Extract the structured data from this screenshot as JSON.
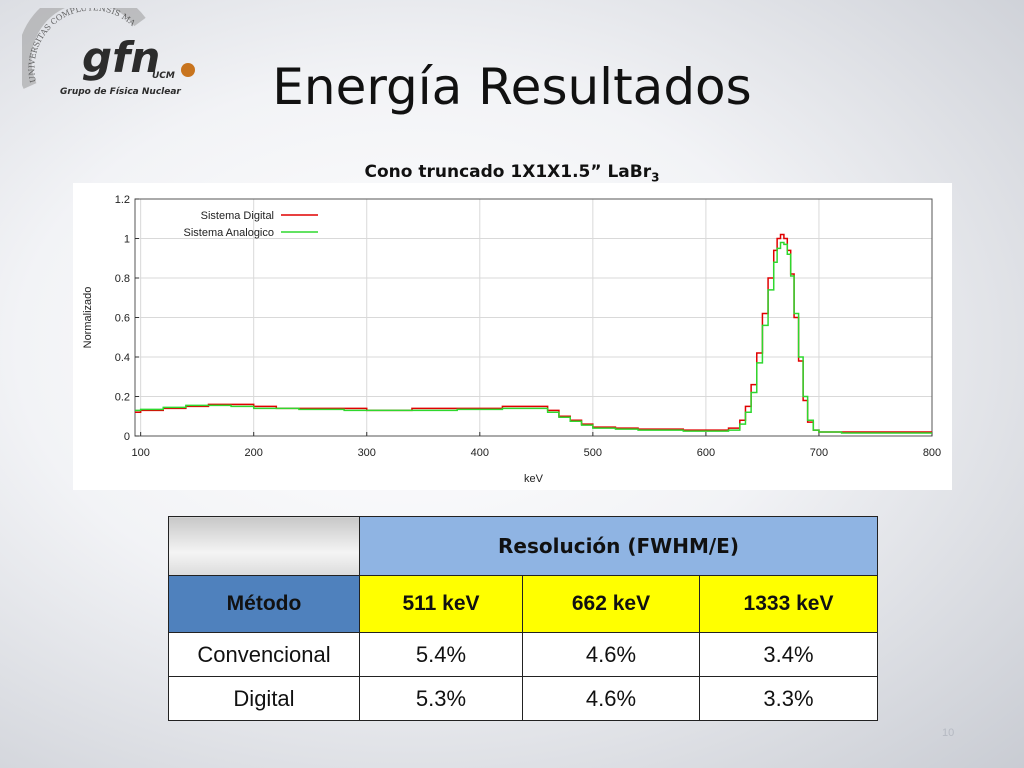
{
  "slide": {
    "title": "Energía Resultados",
    "page_number": "10"
  },
  "logo": {
    "name": "gfn",
    "suffix": "UCM",
    "tagline": "Grupo de Física Nuclear",
    "arc_text": "UNIVERSITAS COMPLUTENSIS MATRITENSIS"
  },
  "chart_title": {
    "main": "Cono truncado 1X1X1.5” LaBr",
    "sub": "3"
  },
  "chart_data": {
    "type": "line",
    "xlabel": "keV",
    "ylabel": "Normalizado",
    "xlim": [
      95,
      800
    ],
    "ylim": [
      0,
      1.2
    ],
    "x_ticks": [
      100,
      200,
      300,
      400,
      500,
      600,
      700,
      800
    ],
    "y_ticks": [
      0,
      0.2,
      0.4,
      0.6,
      0.8,
      1,
      1.2
    ],
    "x_tick_labels": [
      "100",
      "200",
      "300",
      "400",
      "500",
      "600",
      "700",
      "800"
    ],
    "y_tick_labels": [
      "0",
      "0.2",
      "0.4",
      "0.6",
      "0.8",
      "1",
      "1.2"
    ],
    "grid": true,
    "legend": "top-left",
    "series": [
      {
        "name": "Sistema Digital",
        "color": "#e00000",
        "x": [
          95,
          100,
          120,
          140,
          160,
          180,
          200,
          220,
          240,
          260,
          280,
          300,
          320,
          340,
          360,
          380,
          400,
          420,
          440,
          450,
          460,
          470,
          480,
          490,
          500,
          520,
          540,
          560,
          580,
          600,
          610,
          620,
          630,
          635,
          640,
          645,
          650,
          655,
          660,
          663,
          666,
          669,
          672,
          675,
          678,
          682,
          686,
          690,
          695,
          700,
          710,
          720,
          740,
          760,
          780,
          800
        ],
        "y": [
          0.12,
          0.13,
          0.14,
          0.15,
          0.16,
          0.16,
          0.15,
          0.14,
          0.14,
          0.14,
          0.14,
          0.13,
          0.13,
          0.14,
          0.14,
          0.14,
          0.14,
          0.15,
          0.15,
          0.15,
          0.13,
          0.1,
          0.08,
          0.06,
          0.045,
          0.04,
          0.035,
          0.035,
          0.03,
          0.03,
          0.03,
          0.04,
          0.08,
          0.15,
          0.26,
          0.42,
          0.62,
          0.8,
          0.94,
          1.0,
          1.02,
          1.0,
          0.94,
          0.82,
          0.6,
          0.38,
          0.18,
          0.07,
          0.03,
          0.02,
          0.02,
          0.02,
          0.02,
          0.02,
          0.02,
          0.02
        ]
      },
      {
        "name": "Sistema Analogico",
        "color": "#2ed82e",
        "x": [
          95,
          100,
          120,
          140,
          160,
          180,
          200,
          220,
          240,
          260,
          280,
          300,
          320,
          340,
          360,
          380,
          400,
          420,
          440,
          450,
          460,
          470,
          480,
          490,
          500,
          520,
          540,
          560,
          580,
          600,
          610,
          620,
          630,
          635,
          640,
          645,
          650,
          655,
          660,
          663,
          666,
          669,
          672,
          675,
          678,
          682,
          686,
          690,
          695,
          700,
          710,
          720,
          740,
          760,
          780,
          800
        ],
        "y": [
          0.13,
          0.135,
          0.145,
          0.155,
          0.155,
          0.15,
          0.14,
          0.14,
          0.135,
          0.135,
          0.13,
          0.13,
          0.13,
          0.13,
          0.13,
          0.135,
          0.135,
          0.14,
          0.14,
          0.14,
          0.12,
          0.095,
          0.075,
          0.055,
          0.04,
          0.035,
          0.03,
          0.03,
          0.025,
          0.025,
          0.025,
          0.03,
          0.06,
          0.12,
          0.22,
          0.37,
          0.56,
          0.74,
          0.88,
          0.95,
          0.98,
          0.97,
          0.92,
          0.81,
          0.62,
          0.4,
          0.2,
          0.08,
          0.03,
          0.02,
          0.02,
          0.015,
          0.015,
          0.015,
          0.015,
          0.015
        ]
      }
    ]
  },
  "table": {
    "header_resolution": "Resolución (FWHM/E)",
    "header_method": "Método",
    "energies": [
      "511 keV",
      "662 keV",
      "1333 keV"
    ],
    "rows": [
      {
        "method": "Convencional",
        "values": [
          "5.4%",
          "4.6%",
          "3.4%"
        ]
      },
      {
        "method": "Digital",
        "values": [
          "5.3%",
          "4.6%",
          "3.3%"
        ]
      }
    ]
  }
}
